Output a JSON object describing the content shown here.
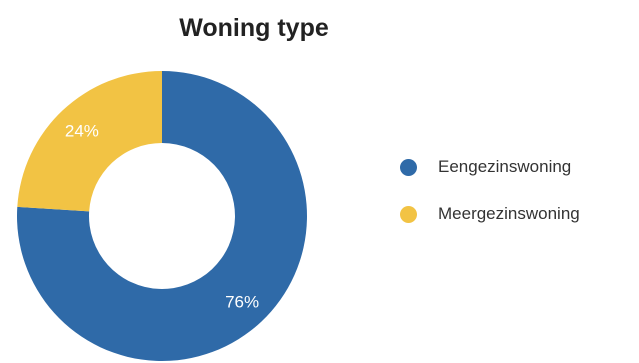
{
  "chart_data": {
    "type": "pie",
    "variant": "donut",
    "title": "Woning type",
    "categories": [
      "Eengezinswoning",
      "Meergezinswoning"
    ],
    "values": [
      76,
      24
    ],
    "labels": [
      "76%",
      "24%"
    ],
    "colors": [
      "#2f6aa8",
      "#f2c344"
    ],
    "label_color": "#ffffff",
    "legend_position": "right"
  }
}
